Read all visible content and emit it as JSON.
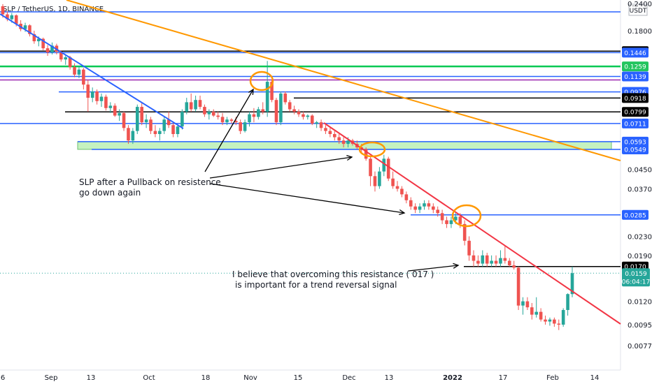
{
  "chart_data": {
    "type": "candlestick",
    "symbol": "SLP / TetherUS, 1D, BINANCE",
    "currency": "USDT",
    "y_scale": "log",
    "y_ticks": [
      "0.2400",
      "0.1800",
      "0.0450",
      "0.0370",
      "0.0230",
      "0.0190",
      "0.0120",
      "0.0095",
      "0.0077"
    ],
    "x_ticks": [
      "6",
      "Sep",
      "13",
      "Oct",
      "18",
      "Nov",
      "15",
      "Dec",
      "13",
      "2022",
      "17",
      "Feb",
      "14"
    ],
    "ohlc": [
      [
        0.23,
        0.235,
        0.205,
        0.212
      ],
      [
        0.212,
        0.218,
        0.198,
        0.202
      ],
      [
        0.202,
        0.215,
        0.195,
        0.21
      ],
      [
        0.21,
        0.212,
        0.188,
        0.193
      ],
      [
        0.193,
        0.2,
        0.179,
        0.183
      ],
      [
        0.183,
        0.195,
        0.178,
        0.19
      ],
      [
        0.19,
        0.192,
        0.17,
        0.174
      ],
      [
        0.174,
        0.18,
        0.158,
        0.162
      ],
      [
        0.162,
        0.17,
        0.154,
        0.166
      ],
      [
        0.166,
        0.168,
        0.148,
        0.151
      ],
      [
        0.151,
        0.156,
        0.14,
        0.145
      ],
      [
        0.145,
        0.16,
        0.142,
        0.155
      ],
      [
        0.155,
        0.158,
        0.142,
        0.146
      ],
      [
        0.146,
        0.148,
        0.132,
        0.135
      ],
      [
        0.135,
        0.142,
        0.128,
        0.138
      ],
      [
        0.138,
        0.14,
        0.122,
        0.125
      ],
      [
        0.125,
        0.13,
        0.113,
        0.116
      ],
      [
        0.116,
        0.126,
        0.112,
        0.122
      ],
      [
        0.122,
        0.124,
        0.1,
        0.105
      ],
      [
        0.105,
        0.11,
        0.08,
        0.092
      ],
      [
        0.092,
        0.102,
        0.088,
        0.098
      ],
      [
        0.098,
        0.1,
        0.086,
        0.089
      ],
      [
        0.089,
        0.096,
        0.084,
        0.093
      ],
      [
        0.093,
        0.095,
        0.081,
        0.083
      ],
      [
        0.083,
        0.088,
        0.079,
        0.085
      ],
      [
        0.085,
        0.087,
        0.076,
        0.077
      ],
      [
        0.077,
        0.082,
        0.073,
        0.079
      ],
      [
        0.079,
        0.08,
        0.066,
        0.068
      ],
      [
        0.068,
        0.07,
        0.058,
        0.06
      ],
      [
        0.06,
        0.068,
        0.058,
        0.066
      ],
      [
        0.066,
        0.086,
        0.064,
        0.084
      ],
      [
        0.084,
        0.088,
        0.07,
        0.072
      ],
      [
        0.072,
        0.078,
        0.068,
        0.074
      ],
      [
        0.074,
        0.076,
        0.064,
        0.066
      ],
      [
        0.066,
        0.07,
        0.062,
        0.064
      ],
      [
        0.064,
        0.068,
        0.06,
        0.066
      ],
      [
        0.066,
        0.076,
        0.064,
        0.074
      ],
      [
        0.074,
        0.08,
        0.068,
        0.07
      ],
      [
        0.07,
        0.072,
        0.062,
        0.064
      ],
      [
        0.064,
        0.07,
        0.062,
        0.069
      ],
      [
        0.069,
        0.082,
        0.067,
        0.08
      ],
      [
        0.08,
        0.092,
        0.078,
        0.088
      ],
      [
        0.088,
        0.096,
        0.08,
        0.082
      ],
      [
        0.082,
        0.094,
        0.08,
        0.09
      ],
      [
        0.09,
        0.094,
        0.082,
        0.084
      ],
      [
        0.084,
        0.086,
        0.076,
        0.078
      ],
      [
        0.078,
        0.082,
        0.074,
        0.08
      ],
      [
        0.08,
        0.082,
        0.076,
        0.077
      ],
      [
        0.077,
        0.08,
        0.074,
        0.076
      ],
      [
        0.076,
        0.079,
        0.07,
        0.072
      ],
      [
        0.072,
        0.076,
        0.07,
        0.074
      ],
      [
        0.074,
        0.075,
        0.071,
        0.073
      ],
      [
        0.073,
        0.076,
        0.07,
        0.072
      ],
      [
        0.072,
        0.074,
        0.064,
        0.066
      ],
      [
        0.066,
        0.074,
        0.065,
        0.072
      ],
      [
        0.072,
        0.08,
        0.069,
        0.078
      ],
      [
        0.078,
        0.083,
        0.072,
        0.076
      ],
      [
        0.076,
        0.084,
        0.074,
        0.082
      ],
      [
        0.082,
        0.088,
        0.078,
        0.08
      ],
      [
        0.08,
        0.133,
        0.076,
        0.108
      ],
      [
        0.108,
        0.11,
        0.088,
        0.09
      ],
      [
        0.09,
        0.092,
        0.07,
        0.072
      ],
      [
        0.072,
        0.098,
        0.07,
        0.096
      ],
      [
        0.096,
        0.098,
        0.086,
        0.088
      ],
      [
        0.088,
        0.09,
        0.08,
        0.082
      ],
      [
        0.082,
        0.085,
        0.078,
        0.08
      ],
      [
        0.08,
        0.082,
        0.076,
        0.078
      ],
      [
        0.078,
        0.08,
        0.074,
        0.076
      ],
      [
        0.076,
        0.078,
        0.074,
        0.077
      ],
      [
        0.077,
        0.078,
        0.07,
        0.071
      ],
      [
        0.071,
        0.073,
        0.068,
        0.072
      ],
      [
        0.072,
        0.074,
        0.066,
        0.068
      ],
      [
        0.068,
        0.07,
        0.064,
        0.066
      ],
      [
        0.066,
        0.068,
        0.062,
        0.064
      ],
      [
        0.064,
        0.066,
        0.06,
        0.062
      ],
      [
        0.062,
        0.064,
        0.058,
        0.06
      ],
      [
        0.06,
        0.062,
        0.056,
        0.058
      ],
      [
        0.058,
        0.062,
        0.056,
        0.06
      ],
      [
        0.06,
        0.061,
        0.057,
        0.058
      ],
      [
        0.058,
        0.06,
        0.055,
        0.056
      ],
      [
        0.056,
        0.058,
        0.053,
        0.055
      ],
      [
        0.055,
        0.056,
        0.049,
        0.05
      ],
      [
        0.05,
        0.051,
        0.038,
        0.042
      ],
      [
        0.042,
        0.044,
        0.036,
        0.038
      ],
      [
        0.038,
        0.046,
        0.037,
        0.044
      ],
      [
        0.044,
        0.052,
        0.042,
        0.05
      ],
      [
        0.05,
        0.051,
        0.04,
        0.041
      ],
      [
        0.041,
        0.044,
        0.037,
        0.038
      ],
      [
        0.038,
        0.04,
        0.036,
        0.037
      ],
      [
        0.037,
        0.038,
        0.034,
        0.035
      ],
      [
        0.035,
        0.036,
        0.032,
        0.033
      ],
      [
        0.033,
        0.034,
        0.03,
        0.031
      ],
      [
        0.031,
        0.032,
        0.029,
        0.03
      ],
      [
        0.03,
        0.032,
        0.029,
        0.031
      ],
      [
        0.031,
        0.033,
        0.03,
        0.032
      ],
      [
        0.032,
        0.033,
        0.03,
        0.031
      ],
      [
        0.031,
        0.032,
        0.029,
        0.03
      ],
      [
        0.03,
        0.031,
        0.028,
        0.029
      ],
      [
        0.029,
        0.03,
        0.026,
        0.027
      ],
      [
        0.027,
        0.028,
        0.025,
        0.026
      ],
      [
        0.026,
        0.028,
        0.025,
        0.027
      ],
      [
        0.027,
        0.029,
        0.026,
        0.028
      ],
      [
        0.028,
        0.029,
        0.025,
        0.026
      ],
      [
        0.026,
        0.027,
        0.021,
        0.022
      ],
      [
        0.022,
        0.023,
        0.018,
        0.019
      ],
      [
        0.019,
        0.02,
        0.017,
        0.018
      ],
      [
        0.018,
        0.019,
        0.017,
        0.0175
      ],
      [
        0.0175,
        0.02,
        0.017,
        0.019
      ],
      [
        0.019,
        0.0195,
        0.017,
        0.0175
      ],
      [
        0.0175,
        0.019,
        0.017,
        0.018
      ],
      [
        0.018,
        0.019,
        0.017,
        0.0175
      ],
      [
        0.0175,
        0.02,
        0.017,
        0.0185
      ],
      [
        0.0185,
        0.021,
        0.0175,
        0.018
      ],
      [
        0.018,
        0.0185,
        0.017,
        0.0172
      ],
      [
        0.0172,
        0.018,
        0.0165,
        0.0168
      ],
      [
        0.0168,
        0.017,
        0.011,
        0.0115
      ],
      [
        0.0115,
        0.0125,
        0.0105,
        0.012
      ],
      [
        0.012,
        0.0125,
        0.011,
        0.0113
      ],
      [
        0.0113,
        0.0118,
        0.01,
        0.0105
      ],
      [
        0.0105,
        0.0125,
        0.0102,
        0.0108
      ],
      [
        0.0108,
        0.0112,
        0.0098,
        0.01
      ],
      [
        0.01,
        0.0104,
        0.0095,
        0.0098
      ],
      [
        0.0098,
        0.0102,
        0.0094,
        0.01
      ],
      [
        0.01,
        0.0102,
        0.0093,
        0.0096
      ],
      [
        0.0096,
        0.01,
        0.009,
        0.0095
      ],
      [
        0.0095,
        0.0112,
        0.0093,
        0.011
      ],
      [
        0.011,
        0.013,
        0.0104,
        0.0129
      ],
      [
        0.0129,
        0.017,
        0.0125,
        0.0159
      ]
    ],
    "h_levels": [
      {
        "value": "0.1467",
        "color": "#000000",
        "tag_bg": "#000000",
        "tag_fg": "#ffffff"
      },
      {
        "value": "0.1446",
        "color": "#2962ff",
        "tag_bg": "#2962ff",
        "tag_fg": "#ffffff"
      },
      {
        "value": "0.1259",
        "color": "#00c853",
        "tag_bg": "#22c55e",
        "tag_fg": "#ffffff"
      },
      {
        "value": "0.1139",
        "color": "#2962ff",
        "tag_bg": "#2962ff",
        "tag_fg": "#ffffff"
      },
      {
        "value": "0.0976",
        "color": "#2962ff",
        "tag_bg": "#2962ff",
        "tag_fg": "#ffffff"
      },
      {
        "value": "0.0918",
        "color": "#000000",
        "tag_bg": "#000000",
        "tag_fg": "#ffffff"
      },
      {
        "value": "0.0799",
        "color": "#000000",
        "tag_bg": "#000000",
        "tag_fg": "#ffffff"
      },
      {
        "value": "0.0711",
        "color": "#2962ff",
        "tag_bg": "#2962ff",
        "tag_fg": "#ffffff"
      },
      {
        "value": "0.0593",
        "color": "#2962ff",
        "tag_bg": "#2962ff",
        "tag_fg": "#ffffff"
      },
      {
        "value": "0.0549",
        "color": "#2962ff",
        "tag_bg": "#2962ff",
        "tag_fg": "#ffffff"
      },
      {
        "value": "0.0285",
        "color": "#2962ff",
        "tag_bg": "#2962ff",
        "tag_fg": "#ffffff"
      },
      {
        "value": "0.0170",
        "color": "#000000",
        "tag_bg": "#000000",
        "tag_fg": "#ffffff"
      }
    ],
    "last_price": "0.0159",
    "countdown": "06:04:17",
    "top_level_label": "0.2400",
    "annotations": [
      "SLP after a Pullback on resistence",
      "go down again",
      "I believe that overcoming this resistance ( 017 )",
      "is important for a trend reversal signal"
    ],
    "colors": {
      "up": "#26a69a",
      "down": "#ef5350",
      "orange_trend": "#ff9800",
      "red_trend": "#f23645",
      "blue_trend": "#2962ff",
      "zone": "#b7f0b0"
    }
  }
}
